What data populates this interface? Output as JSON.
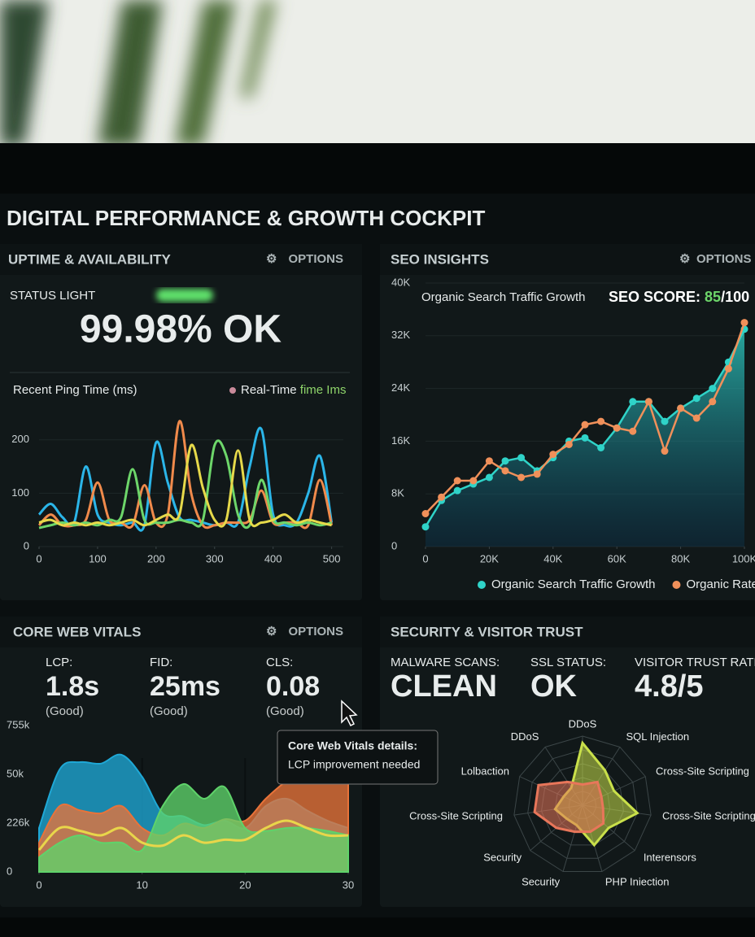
{
  "title": "DIGITAL PERFORMANCE & GROWTH COCKPIT",
  "uptime": {
    "header": "UPTIME & AVAILABILITY",
    "options": "OPTIONS",
    "status_label": "STATUS LIGHT",
    "status_value": "99.98% OK"
  },
  "seo": {
    "header": "SEO INSIGHTS",
    "options": "OPTIONS",
    "score_label": "SEO SCORE:",
    "score": "85",
    "score_max": "/100"
  },
  "vitals": {
    "header": "CORE WEB VITALS",
    "options": "OPTIONS",
    "metrics": [
      {
        "name": "LCP:",
        "value": "1.8s",
        "note": "(Good)",
        "color": "#f0c94a"
      },
      {
        "name": "FID:",
        "value": "25ms",
        "note": "(Good)",
        "color": "#6dd66a"
      },
      {
        "name": "CLS:",
        "value": "0.08",
        "note": "(Good)",
        "color": "#7ad86a"
      }
    ],
    "tooltip": {
      "title": "Core Web Vitals details:",
      "body": "LCP improvement needed"
    }
  },
  "security": {
    "header": "SECURITY & VISITOR TRUST",
    "metrics": [
      {
        "name": "MALWARE SCANS:",
        "value": "CLEAN",
        "color": "#2ec4e0"
      },
      {
        "name": "SSL STATUS:",
        "value": "OK",
        "color": "#6dd66a"
      },
      {
        "name": "VISITOR TRUST RATING",
        "value": "4.8/5",
        "color": "#9aa3a5"
      }
    ]
  },
  "chart_data": [
    {
      "type": "line",
      "title": "Recent Ping Time (ms)",
      "legend": "Real-Time",
      "legend_suffix": "fime Ims",
      "legend_color": "#c98a9a",
      "x": [
        0,
        20,
        40,
        60,
        80,
        100,
        120,
        140,
        160,
        180,
        200,
        220,
        240,
        260,
        280,
        300,
        320,
        340,
        360,
        380,
        400,
        420,
        440,
        460,
        480,
        500
      ],
      "xlim": [
        0,
        520
      ],
      "xticks": [
        0,
        100,
        200,
        300,
        400,
        500
      ],
      "ylim": [
        0,
        250
      ],
      "yticks": [
        0,
        100,
        200
      ],
      "grid": true,
      "series": [
        {
          "color": "#2bb5e8",
          "values": [
            60,
            80,
            55,
            45,
            150,
            60,
            45,
            40,
            45,
            40,
            195,
            120,
            55,
            50,
            45,
            40,
            45,
            45,
            150,
            220,
            60,
            40,
            45,
            100,
            170,
            45
          ]
        },
        {
          "color": "#f08a4b",
          "values": [
            40,
            60,
            40,
            40,
            50,
            120,
            50,
            45,
            40,
            115,
            45,
            60,
            235,
            100,
            40,
            40,
            45,
            45,
            50,
            105,
            45,
            45,
            45,
            40,
            125,
            40
          ]
        },
        {
          "color": "#6dd66a",
          "values": [
            35,
            40,
            45,
            40,
            45,
            40,
            50,
            55,
            145,
            50,
            45,
            45,
            50,
            45,
            50,
            190,
            170,
            60,
            40,
            125,
            50,
            45,
            40,
            45,
            40,
            45
          ]
        },
        {
          "color": "#e6d94a",
          "values": [
            45,
            50,
            40,
            45,
            40,
            45,
            40,
            45,
            50,
            40,
            50,
            60,
            60,
            190,
            110,
            50,
            50,
            180,
            50,
            45,
            50,
            60,
            45,
            50,
            45,
            40
          ]
        }
      ]
    },
    {
      "type": "line",
      "title": "Organic Search Traffic Growth",
      "x": [
        0,
        5000,
        10000,
        15000,
        20000,
        25000,
        30000,
        35000,
        40000,
        45000,
        50000,
        55000,
        60000,
        65000,
        70000,
        75000,
        80000,
        85000,
        90000,
        95000,
        100000
      ],
      "xlim": [
        0,
        100000
      ],
      "ylim": [
        0,
        40000
      ],
      "xticks": [
        0,
        {
          "value": 20000,
          "label": "20K"
        },
        {
          "value": 40000,
          "label": "40K"
        },
        {
          "value": 60000,
          "label": "60K"
        },
        {
          "value": 80000,
          "label": "80K"
        },
        {
          "value": 100000,
          "label": "100K"
        }
      ],
      "yticks": [
        0,
        {
          "value": 8000,
          "label": "8K"
        },
        {
          "value": 16000,
          "label": "16K"
        },
        {
          "value": 24000,
          "label": "24K"
        },
        {
          "value": 32000,
          "label": "32K"
        },
        {
          "value": 40000,
          "label": "40K"
        }
      ],
      "grid": true,
      "series": [
        {
          "name": "Organic Search Traffic Growth",
          "color": "#2fd3c8",
          "area": true,
          "values": [
            3000,
            7000,
            8500,
            9500,
            10500,
            13000,
            13500,
            11500,
            13500,
            16000,
            16500,
            15000,
            18000,
            22000,
            22000,
            19000,
            21000,
            22500,
            24000,
            28000,
            33000
          ]
        },
        {
          "name": "Organic Rate",
          "color": "#f0905a",
          "area": false,
          "values": [
            5000,
            7500,
            10000,
            10000,
            13000,
            11500,
            10500,
            11000,
            14000,
            15500,
            18500,
            19000,
            18000,
            17500,
            22000,
            14500,
            21000,
            19500,
            22000,
            27000,
            34000
          ]
        }
      ]
    },
    {
      "type": "area",
      "x": [
        0,
        2,
        4,
        6,
        8,
        10,
        12,
        14,
        16,
        18,
        20,
        22,
        24,
        26,
        28,
        30
      ],
      "xlim": [
        0,
        30
      ],
      "xticks": [
        0,
        10,
        20,
        30
      ],
      "y_labels": [
        "755k",
        "50k",
        "226k",
        "0"
      ],
      "series": [
        {
          "color": "#1fa8d6",
          "area": true,
          "values": [
            0.3,
            0.7,
            0.75,
            0.74,
            0.8,
            0.65,
            0.4,
            0.38,
            0.32,
            0.35,
            0.3,
            0.45,
            0.5,
            0.42,
            0.35,
            0.3
          ]
        },
        {
          "color": "#e8733a",
          "area": true,
          "values": [
            0.2,
            0.45,
            0.42,
            0.4,
            0.45,
            0.3,
            0.25,
            0.33,
            0.3,
            0.36,
            0.35,
            0.5,
            0.62,
            0.7,
            0.72,
            0.7
          ]
        },
        {
          "color": "#5fd36a",
          "area": true,
          "values": [
            0.1,
            0.2,
            0.25,
            0.2,
            0.2,
            0.15,
            0.45,
            0.6,
            0.5,
            0.58,
            0.3,
            0.28,
            0.3,
            0.3,
            0.28,
            0.25
          ]
        },
        {
          "color": "#e8d64a",
          "area": false,
          "values": [
            0.15,
            0.3,
            0.28,
            0.25,
            0.3,
            0.2,
            0.18,
            0.25,
            0.2,
            0.22,
            0.22,
            0.3,
            0.35,
            0.3,
            0.25,
            0.25
          ]
        }
      ]
    },
    {
      "type": "radar",
      "axes": [
        "DDoS",
        "SQL Injection",
        "Cross-Site Scripting",
        "Cross-Site Scripting",
        "Interensors",
        "PHP Iniection",
        "Security",
        "Security",
        "Cross-Site Scripting",
        "Lolbaction",
        "DDoS"
      ],
      "rlim": [
        0,
        10
      ],
      "series": [
        {
          "color": "#c9e04a",
          "values": [
            9,
            6,
            5,
            8,
            5,
            6,
            3,
            3,
            4,
            3,
            3
          ]
        },
        {
          "color": "#e8765a",
          "values": [
            3,
            4,
            3,
            3,
            4,
            4,
            4,
            5,
            7,
            7,
            4
          ]
        }
      ]
    }
  ]
}
